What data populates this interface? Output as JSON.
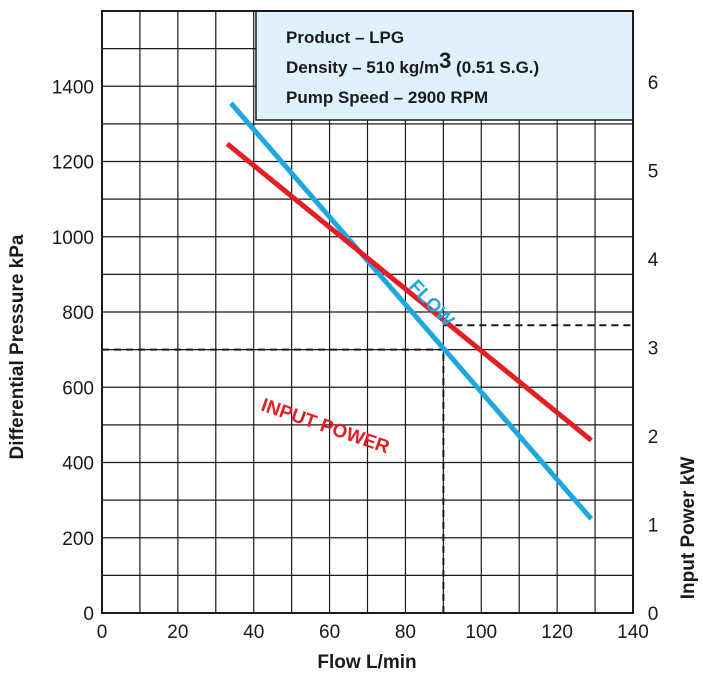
{
  "colors": {
    "flow": "#1ea8e0",
    "input_power": "#e31e24",
    "info_box_fill": "#dff1fb",
    "grid": "#1a1a1a",
    "reference_line": "#1a1a1a"
  },
  "info_box": {
    "line1": "Product – LPG",
    "line2_prefix": "Density – 510 kg/m",
    "line2_sup": "3",
    "line2_suffix": " (0.51 S.G.)",
    "line3": "Pump Speed – 2900 RPM"
  },
  "chart_data": {
    "type": "line",
    "xlabel": "Flow L/min",
    "ylabel": "Differential Pressure kPa",
    "y2label": "Input Power kW",
    "xlim": [
      0,
      140
    ],
    "ylim": [
      0,
      1600
    ],
    "y2lim": [
      0,
      6.8
    ],
    "x_ticks": [
      0,
      20,
      40,
      60,
      80,
      100,
      120,
      140
    ],
    "y_ticks": [
      0,
      200,
      400,
      600,
      800,
      1000,
      1200,
      1400
    ],
    "y2_ticks": [
      0,
      1,
      2,
      3,
      4,
      5,
      6
    ],
    "grid": true,
    "series": [
      {
        "name": "FLOW",
        "axis": "left",
        "x": [
          34,
          129
        ],
        "y": [
          1355,
          250
        ]
      },
      {
        "name": "INPUT POWER",
        "axis": "right",
        "x": [
          33,
          129
        ],
        "y": [
          5.3,
          1.95
        ]
      }
    ],
    "reference_lines": [
      {
        "axis": "left",
        "from": [
          0,
          700
        ],
        "to": [
          90,
          700
        ]
      },
      {
        "axis": "bottom",
        "from": [
          90,
          0
        ],
        "to": [
          90,
          700
        ]
      },
      {
        "axis": "right",
        "from": [
          90,
          3.25
        ],
        "to": [
          140,
          3.25
        ]
      }
    ]
  }
}
